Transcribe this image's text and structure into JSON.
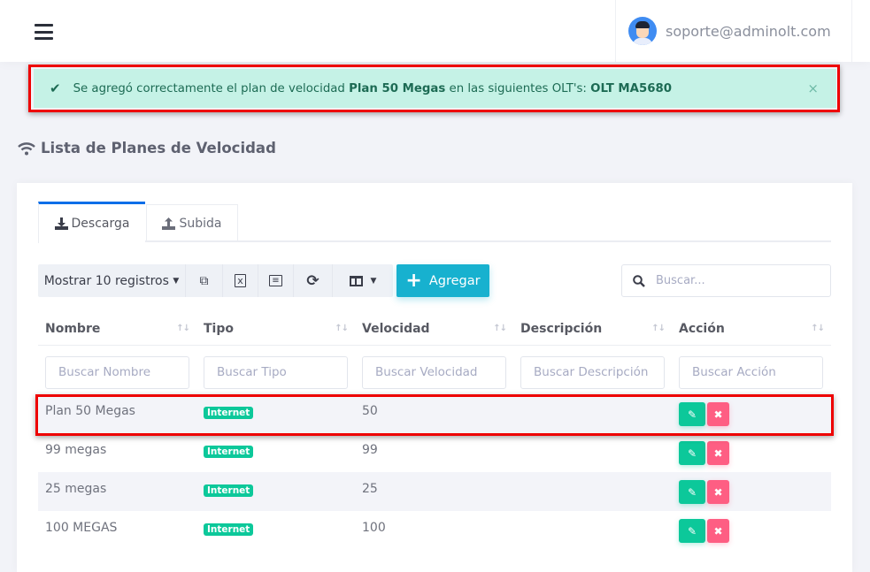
{
  "header": {
    "user_email": "soporte@adminolt.com"
  },
  "alert": {
    "prefix": "Se agregó correctamente el plan de velocidad",
    "plan": "Plan 50 Megas",
    "middle": "en las siguientes OLT's:",
    "olt": "OLT MA5680",
    "close": "×",
    "color": "#c5f2e6"
  },
  "page_title": "Lista de Planes de Velocidad",
  "tabs": [
    {
      "label": "Descarga",
      "active": true
    },
    {
      "label": "Subida",
      "active": false
    }
  ],
  "toolbar": {
    "show_records": "Mostrar 10 registros",
    "add_label": "Agregar",
    "search_placeholder": "Buscar..."
  },
  "table": {
    "columns": [
      "Nombre",
      "Tipo",
      "Velocidad",
      "Descripción",
      "Acción"
    ],
    "filters": [
      "Buscar Nombre",
      "Buscar Tipo",
      "Buscar Velocidad",
      "Buscar Descripción",
      "Buscar Acción"
    ],
    "rows": [
      {
        "nombre": "Plan 50 Megas",
        "tipo": "Internet",
        "velocidad": "50",
        "descripcion": ""
      },
      {
        "nombre": "99 megas",
        "tipo": "Internet",
        "velocidad": "99",
        "descripcion": ""
      },
      {
        "nombre": "25 megas",
        "tipo": "Internet",
        "velocidad": "25",
        "descripcion": ""
      },
      {
        "nombre": "100 MEGAS",
        "tipo": "Internet",
        "velocidad": "100",
        "descripcion": ""
      }
    ]
  },
  "colors": {
    "primary": "#17b1cf",
    "success": "#0cc89a",
    "danger": "#fe5e83",
    "tab_accent": "#0c6ee8"
  }
}
